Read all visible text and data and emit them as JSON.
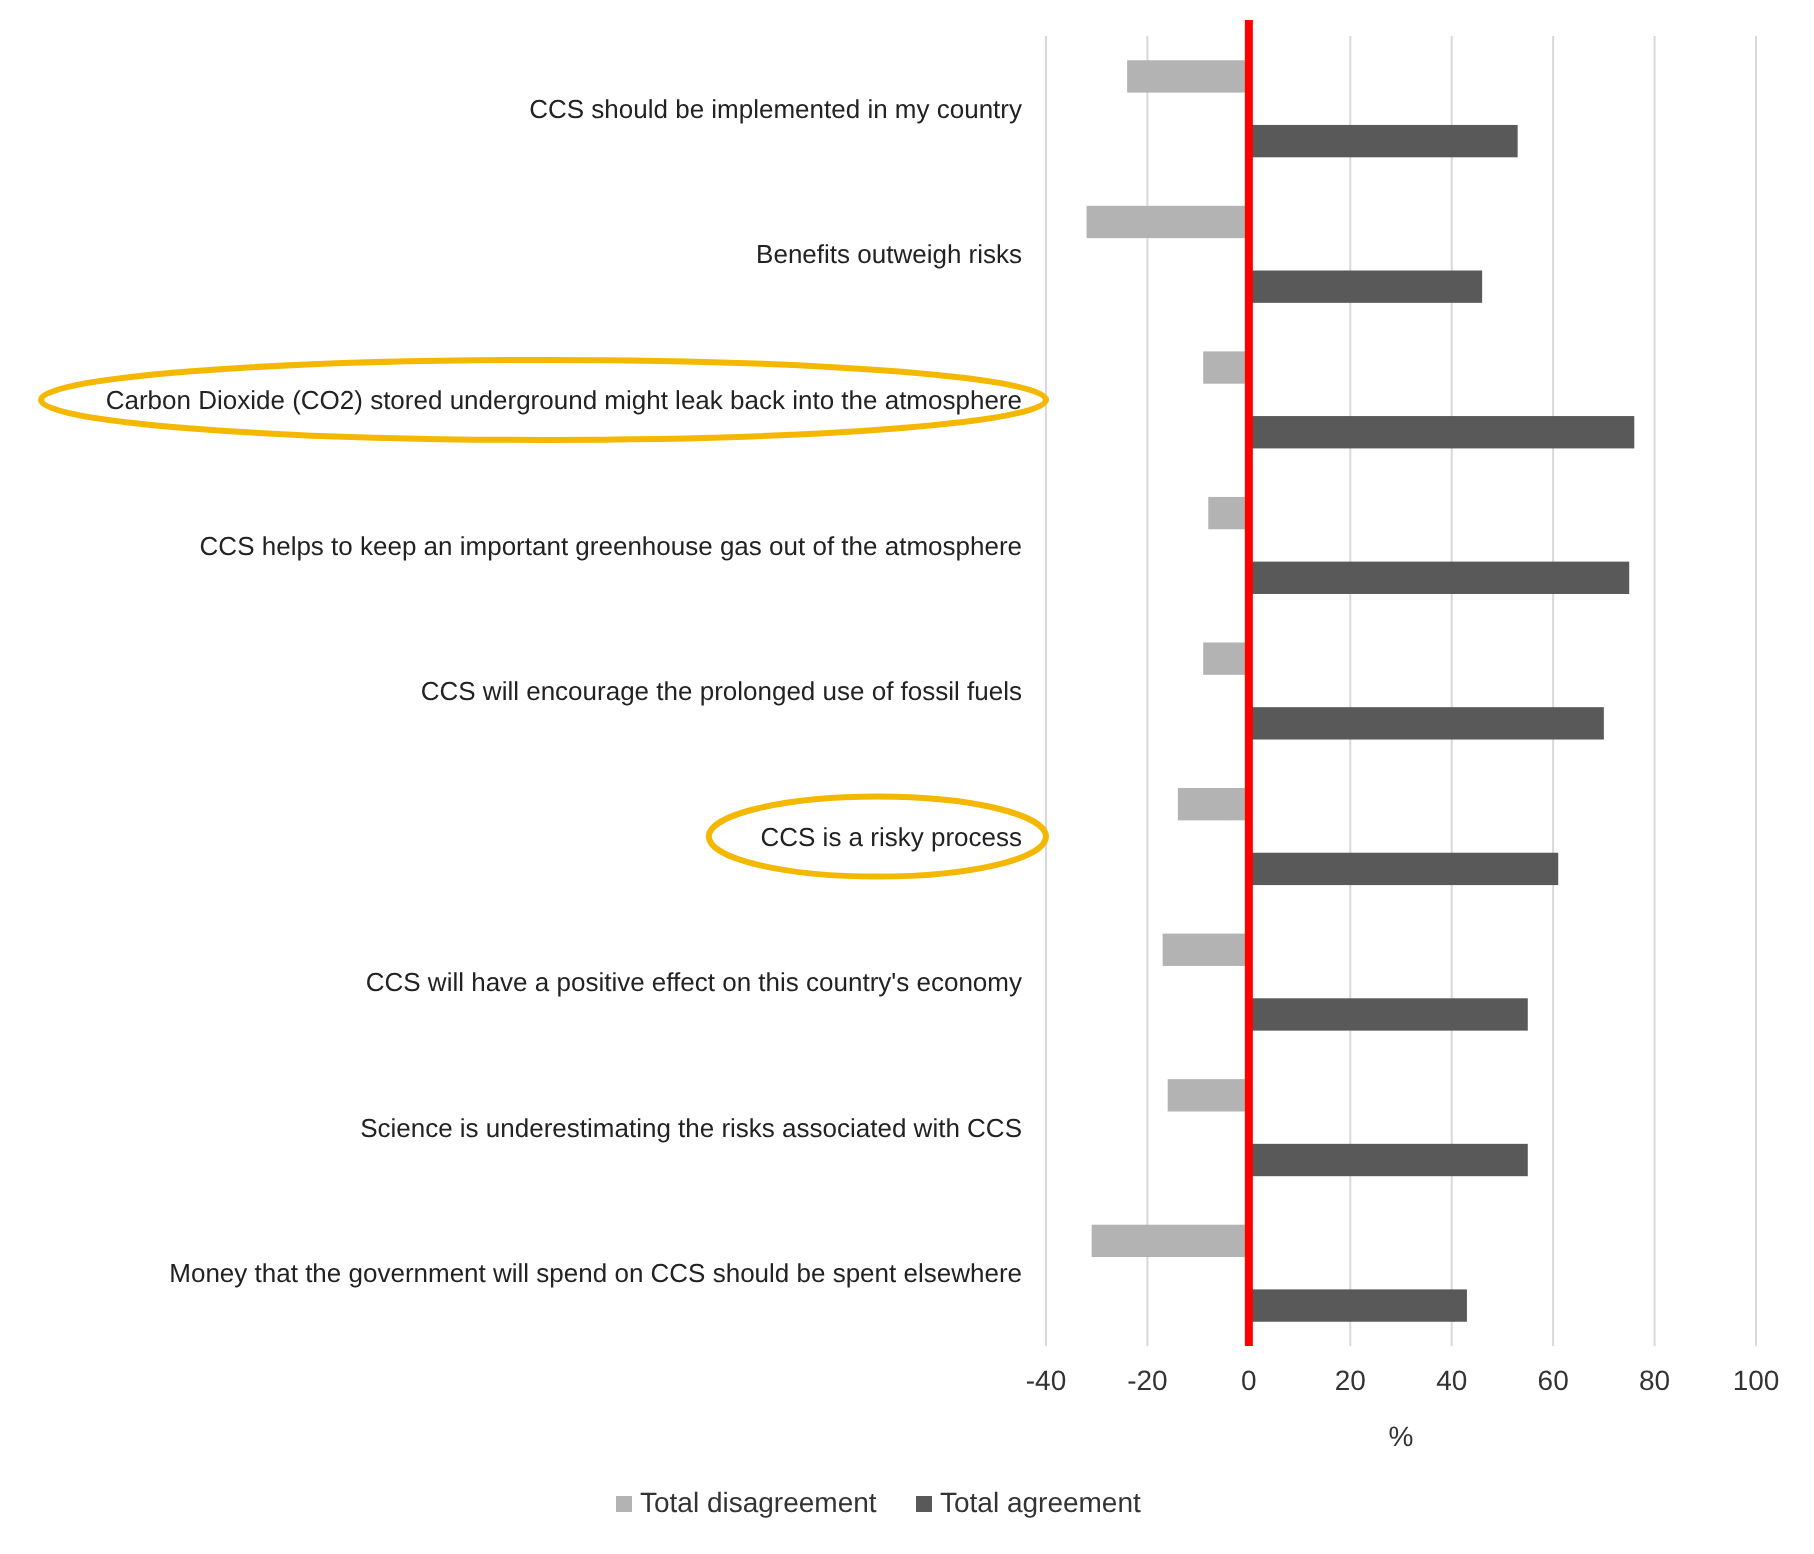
{
  "chart_data": {
    "type": "bar",
    "orientation": "horizontal",
    "xlabel": "%",
    "categories": [
      "CCS should be implemented in my country",
      "Benefits outweigh risks",
      "Carbon Dioxide (CO2) stored underground might leak back into the atmosphere",
      "CCS helps to keep an important greenhouse gas out of the atmosphere",
      "CCS will encourage the prolonged use of fossil fuels",
      "CCS is a risky process",
      "CCS will have a positive effect on this country's economy",
      "Science is underestimating the risks associated with CCS",
      "Money that the government will spend on CCS should be spent elsewhere"
    ],
    "series": [
      {
        "name": "Total disagreement",
        "color": "#b3b3b3",
        "values": [
          -24,
          -32,
          -9,
          -8,
          -9,
          -14,
          -17,
          -16,
          -31
        ]
      },
      {
        "name": "Total agreement",
        "color": "#595959",
        "values": [
          53,
          46,
          76,
          75,
          70,
          61,
          55,
          55,
          43
        ]
      }
    ],
    "xlim": [
      -40,
      100
    ],
    "xticks": [
      -40,
      -20,
      0,
      20,
      40,
      60,
      80,
      100
    ],
    "grid": "x",
    "legend": "bottom",
    "ref_lines": [
      {
        "axis": "x",
        "value": 0,
        "color": "#ff0000"
      }
    ]
  }
}
